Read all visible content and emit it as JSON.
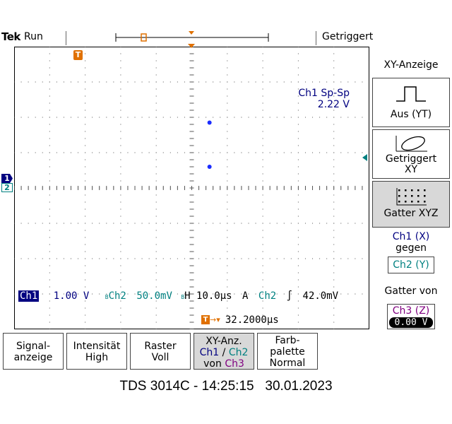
{
  "header": {
    "brand": "Tek",
    "acq_state": "Run",
    "trigger_status": "Getriggert"
  },
  "markers": {
    "trigger_pos": "T",
    "ch1": "1",
    "ch2": "2"
  },
  "measurement": {
    "label": "Ch1 Sp-Sp",
    "value": "2.22 V"
  },
  "status_line": {
    "ch1_label": "Ch1",
    "ch1_scale": "1.00 V",
    "ch2_label": "Ch2",
    "ch2_scale": "50.0mV",
    "bw_mark": "B",
    "timebase": "H 10.0µs",
    "trig_mode": "A",
    "trig_source": "Ch2",
    "trig_slope": "∫",
    "trig_level": "42.0mV",
    "trig_offset": "32.2000µs"
  },
  "points": [
    {
      "x": 0.5,
      "y": 1.85
    },
    {
      "x": 0.5,
      "y": 0.6
    }
  ],
  "right_menu": {
    "title": "XY-Anzeige",
    "btn_off": "Aus (YT)",
    "btn_trig_line1": "Getriggert",
    "btn_trig_line2": "XY",
    "btn_gate": "Gatter XYZ",
    "ch1_x": "Ch1 (X)",
    "gegen": "gegen",
    "ch2_y": "Ch2 (Y)",
    "gate_from": "Gatter von",
    "ch3_z": "Ch3 (Z)",
    "z_value": "0.00 V"
  },
  "bottom_menu": {
    "signal_1": "Signal-",
    "signal_2": "anzeige",
    "intens_1": "Intensität",
    "intens_2": "High",
    "raster_1": "Raster",
    "raster_2": "Voll",
    "xy_1": "XY-Anz.",
    "xy_ch1": "Ch1",
    "xy_slash": "/",
    "xy_ch2": "Ch2",
    "xy_von": "von",
    "xy_ch3": "Ch3",
    "farb_1": "Farb-",
    "farb_2": "palette",
    "farb_3": "Normal"
  },
  "footer": "TDS 3014C - 14:25:15   30.01.2023"
}
